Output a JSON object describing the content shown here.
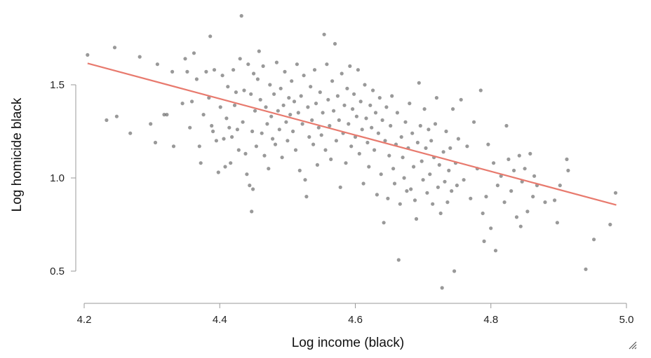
{
  "chart_data": {
    "type": "scatter",
    "title": "",
    "xlabel": "Log income (black)",
    "ylabel": "Log homicide black",
    "xlim": [
      4.2,
      5.0
    ],
    "ylim": [
      0.4,
      1.9
    ],
    "xticks": [
      "4.2",
      "4.4",
      "4.6",
      "4.8",
      "5.0"
    ],
    "yticks": [
      "0.5",
      "1.0",
      "1.5"
    ],
    "grid": false,
    "colors": {
      "point": "#555555",
      "fit_line": "#e87a6e",
      "axis": "#999999"
    },
    "fit_line": {
      "x": [
        4.205,
        4.985
      ],
      "y": [
        1.615,
        0.855
      ]
    },
    "points": [
      [
        4.205,
        1.66
      ],
      [
        4.245,
        1.7
      ],
      [
        4.282,
        1.65
      ],
      [
        4.233,
        1.31
      ],
      [
        4.248,
        1.33
      ],
      [
        4.268,
        1.24
      ],
      [
        4.298,
        1.29
      ],
      [
        4.305,
        1.19
      ],
      [
        4.308,
        1.61
      ],
      [
        4.318,
        1.34
      ],
      [
        4.322,
        1.34
      ],
      [
        4.33,
        1.57
      ],
      [
        4.332,
        1.17
      ],
      [
        4.345,
        1.4
      ],
      [
        4.349,
        1.64
      ],
      [
        4.352,
        1.57
      ],
      [
        4.356,
        1.27
      ],
      [
        4.359,
        1.41
      ],
      [
        4.362,
        1.67
      ],
      [
        4.366,
        1.53
      ],
      [
        4.37,
        1.17
      ],
      [
        4.372,
        1.08
      ],
      [
        4.376,
        1.34
      ],
      [
        4.38,
        1.57
      ],
      [
        4.384,
        1.43
      ],
      [
        4.386,
        1.76
      ],
      [
        4.388,
        1.28
      ],
      [
        4.39,
        1.25
      ],
      [
        4.392,
        1.58
      ],
      [
        4.395,
        1.2
      ],
      [
        4.398,
        1.03
      ],
      [
        4.401,
        1.38
      ],
      [
        4.404,
        1.55
      ],
      [
        4.406,
        1.21
      ],
      [
        4.408,
        1.06
      ],
      [
        4.41,
        1.32
      ],
      [
        4.412,
        1.49
      ],
      [
        4.414,
        1.27
      ],
      [
        4.416,
        1.08
      ],
      [
        4.418,
        1.22
      ],
      [
        4.42,
        1.58
      ],
      [
        4.422,
        1.39
      ],
      [
        4.424,
        1.46
      ],
      [
        4.426,
        1.26
      ],
      [
        4.428,
        1.15
      ],
      [
        4.43,
        1.64
      ],
      [
        4.432,
        1.87
      ],
      [
        4.434,
        1.3
      ],
      [
        4.436,
        1.47
      ],
      [
        4.438,
        1.13
      ],
      [
        4.44,
        1.02
      ],
      [
        4.442,
        1.61
      ],
      [
        4.444,
        0.96
      ],
      [
        4.446,
        1.45
      ],
      [
        4.447,
        0.82
      ],
      [
        4.448,
        1.25
      ],
      [
        4.449,
        0.94
      ],
      [
        4.45,
        1.56
      ],
      [
        4.452,
        1.36
      ],
      [
        4.454,
        1.17
      ],
      [
        4.456,
        1.53
      ],
      [
        4.458,
        1.68
      ],
      [
        4.46,
        1.42
      ],
      [
        4.462,
        1.24
      ],
      [
        4.464,
        1.6
      ],
      [
        4.466,
        1.12
      ],
      [
        4.468,
        1.38
      ],
      [
        4.47,
        1.29
      ],
      [
        4.472,
        1.05
      ],
      [
        4.474,
        1.5
      ],
      [
        4.476,
        1.33
      ],
      [
        4.478,
        1.21
      ],
      [
        4.48,
        1.45
      ],
      [
        4.482,
        1.18
      ],
      [
        4.484,
        1.62
      ],
      [
        4.486,
        1.36
      ],
      [
        4.488,
        1.26
      ],
      [
        4.49,
        1.48
      ],
      [
        4.492,
        1.11
      ],
      [
        4.494,
        1.39
      ],
      [
        4.496,
        1.57
      ],
      [
        4.498,
        1.3
      ],
      [
        4.5,
        1.2
      ],
      [
        4.502,
        1.43
      ],
      [
        4.504,
        1.34
      ],
      [
        4.506,
        1.52
      ],
      [
        4.508,
        1.25
      ],
      [
        4.51,
        1.41
      ],
      [
        4.512,
        1.15
      ],
      [
        4.514,
        1.61
      ],
      [
        4.516,
        1.35
      ],
      [
        4.518,
        1.04
      ],
      [
        4.52,
        1.44
      ],
      [
        4.522,
        1.29
      ],
      [
        4.524,
        1.55
      ],
      [
        4.526,
        0.99
      ],
      [
        4.528,
        0.9
      ],
      [
        4.53,
        1.38
      ],
      [
        4.532,
        1.22
      ],
      [
        4.534,
        1.49
      ],
      [
        4.536,
        1.31
      ],
      [
        4.538,
        1.18
      ],
      [
        4.54,
        1.58
      ],
      [
        4.542,
        1.4
      ],
      [
        4.544,
        1.07
      ],
      [
        4.546,
        1.27
      ],
      [
        4.548,
        1.46
      ],
      [
        4.55,
        1.23
      ],
      [
        4.552,
        1.35
      ],
      [
        4.554,
        1.77
      ],
      [
        4.556,
        1.15
      ],
      [
        4.558,
        1.61
      ],
      [
        4.56,
        1.42
      ],
      [
        4.562,
        1.28
      ],
      [
        4.564,
        1.1
      ],
      [
        4.566,
        1.52
      ],
      [
        4.568,
        1.36
      ],
      [
        4.57,
        1.72
      ],
      [
        4.572,
        1.2
      ],
      [
        4.574,
        1.44
      ],
      [
        4.576,
        1.31
      ],
      [
        4.578,
        0.95
      ],
      [
        4.58,
        1.56
      ],
      [
        4.582,
        1.24
      ],
      [
        4.584,
        1.39
      ],
      [
        4.586,
        1.08
      ],
      [
        4.588,
        1.48
      ],
      [
        4.59,
        1.29
      ],
      [
        4.592,
        1.6
      ],
      [
        4.594,
        1.17
      ],
      [
        4.596,
        1.37
      ],
      [
        4.598,
        1.45
      ],
      [
        4.6,
        1.22
      ],
      [
        4.602,
        1.33
      ],
      [
        4.604,
        1.58
      ],
      [
        4.606,
        1.13
      ],
      [
        4.608,
        1.41
      ],
      [
        4.61,
        1.26
      ],
      [
        4.612,
        0.97
      ],
      [
        4.614,
        1.5
      ],
      [
        4.616,
        1.32
      ],
      [
        4.618,
        1.19
      ],
      [
        4.62,
        1.06
      ],
      [
        4.622,
        1.39
      ],
      [
        4.624,
        1.27
      ],
      [
        4.626,
        1.47
      ],
      [
        4.628,
        1.15
      ],
      [
        4.63,
        1.35
      ],
      [
        4.632,
        0.91
      ],
      [
        4.634,
        1.24
      ],
      [
        4.636,
        1.43
      ],
      [
        4.638,
        1.02
      ],
      [
        4.64,
        1.31
      ],
      [
        4.642,
        0.76
      ],
      [
        4.644,
        1.2
      ],
      [
        4.646,
        1.38
      ],
      [
        4.648,
        0.89
      ],
      [
        4.65,
        1.12
      ],
      [
        4.652,
        1.28
      ],
      [
        4.654,
        1.44
      ],
      [
        4.656,
        1.05
      ],
      [
        4.658,
        0.97
      ],
      [
        4.66,
        1.18
      ],
      [
        4.662,
        1.35
      ],
      [
        4.664,
        0.56
      ],
      [
        4.666,
        0.86
      ],
      [
        4.668,
        1.22
      ],
      [
        4.67,
        1.11
      ],
      [
        4.672,
        1.0
      ],
      [
        4.674,
        1.3
      ],
      [
        4.676,
        0.93
      ],
      [
        4.678,
        1.16
      ],
      [
        4.68,
        1.4
      ],
      [
        4.682,
        0.94
      ],
      [
        4.684,
        1.24
      ],
      [
        4.686,
        1.06
      ],
      [
        4.688,
        0.88
      ],
      [
        4.69,
        0.78
      ],
      [
        4.692,
        1.19
      ],
      [
        4.694,
        1.51
      ],
      [
        4.696,
        1.28
      ],
      [
        4.698,
        1.09
      ],
      [
        4.7,
        0.99
      ],
      [
        4.702,
        1.37
      ],
      [
        4.704,
        1.16
      ],
      [
        4.706,
        0.92
      ],
      [
        4.708,
        1.26
      ],
      [
        4.71,
        1.02
      ],
      [
        4.712,
        1.2
      ],
      [
        4.714,
        0.86
      ],
      [
        4.716,
        1.11
      ],
      [
        4.718,
        1.29
      ],
      [
        4.72,
        1.43
      ],
      [
        4.722,
        0.95
      ],
      [
        4.724,
        1.07
      ],
      [
        4.726,
        0.81
      ],
      [
        4.728,
        0.41
      ],
      [
        4.73,
        1.14
      ],
      [
        4.732,
        0.98
      ],
      [
        4.734,
        1.25
      ],
      [
        4.736,
        0.87
      ],
      [
        4.738,
        1.04
      ],
      [
        4.74,
        1.16
      ],
      [
        4.742,
        0.93
      ],
      [
        4.744,
        1.37
      ],
      [
        4.746,
        0.5
      ],
      [
        4.748,
        1.08
      ],
      [
        4.75,
        0.96
      ],
      [
        4.752,
        1.21
      ],
      [
        4.756,
        1.42
      ],
      [
        4.76,
        0.99
      ],
      [
        4.765,
        1.17
      ],
      [
        4.77,
        0.89
      ],
      [
        4.775,
        1.3
      ],
      [
        4.78,
        1.05
      ],
      [
        4.785,
        1.47
      ],
      [
        4.788,
        0.81
      ],
      [
        4.79,
        0.66
      ],
      [
        4.793,
        0.9
      ],
      [
        4.796,
        1.18
      ],
      [
        4.8,
        0.73
      ],
      [
        4.804,
        1.08
      ],
      [
        4.807,
        0.61
      ],
      [
        4.81,
        0.96
      ],
      [
        4.815,
        1.01
      ],
      [
        4.82,
        0.87
      ],
      [
        4.823,
        1.28
      ],
      [
        4.826,
        1.1
      ],
      [
        4.83,
        0.93
      ],
      [
        4.834,
        1.04
      ],
      [
        4.838,
        0.79
      ],
      [
        4.842,
        1.12
      ],
      [
        4.844,
        0.74
      ],
      [
        4.846,
        0.98
      ],
      [
        4.85,
        1.05
      ],
      [
        4.854,
        0.82
      ],
      [
        4.858,
        1.13
      ],
      [
        4.862,
        0.9
      ],
      [
        4.864,
        1.01
      ],
      [
        4.868,
        0.96
      ],
      [
        4.88,
        0.87
      ],
      [
        4.894,
        0.88
      ],
      [
        4.898,
        0.76
      ],
      [
        4.902,
        0.96
      ],
      [
        4.912,
        1.1
      ],
      [
        4.914,
        1.04
      ],
      [
        4.94,
        0.51
      ],
      [
        4.952,
        0.67
      ],
      [
        4.976,
        0.75
      ],
      [
        4.984,
        0.92
      ]
    ]
  }
}
